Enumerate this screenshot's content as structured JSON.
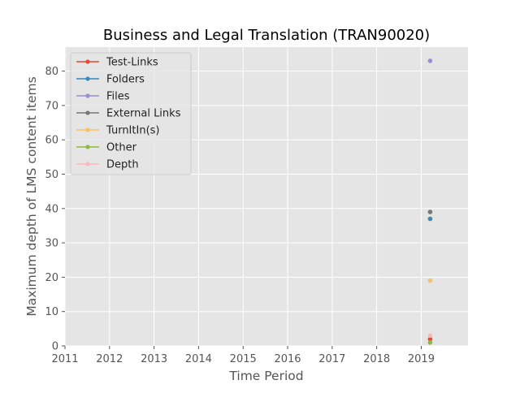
{
  "chart_data": {
    "type": "scatter",
    "title": "Business and Legal Translation (TRAN90020)",
    "xlabel": "Time Period",
    "ylabel": "Maximum depth of LMS content items",
    "xlim": [
      2011,
      2020.05
    ],
    "ylim": [
      0,
      87
    ],
    "x_ticks": [
      "2011",
      "2012",
      "2013",
      "2014",
      "2015",
      "2016",
      "2017",
      "2018",
      "2019"
    ],
    "y_ticks": [
      "0",
      "10",
      "20",
      "30",
      "40",
      "50",
      "60",
      "70",
      "80"
    ],
    "grid": true,
    "legend_position": "top-left",
    "series": [
      {
        "name": "Test-Links",
        "color": "#e24a33",
        "points": [
          {
            "x": 2019.2,
            "y": 2
          }
        ]
      },
      {
        "name": "Folders",
        "color": "#348abd",
        "points": [
          {
            "x": 2019.2,
            "y": 37
          }
        ]
      },
      {
        "name": "Files",
        "color": "#988ed5",
        "points": [
          {
            "x": 2019.2,
            "y": 83
          }
        ]
      },
      {
        "name": "External Links",
        "color": "#777777",
        "points": [
          {
            "x": 2019.2,
            "y": 39
          }
        ]
      },
      {
        "name": "TurnItIn(s)",
        "color": "#fbc15e",
        "points": [
          {
            "x": 2019.2,
            "y": 19
          }
        ]
      },
      {
        "name": "Other",
        "color": "#8eba42",
        "points": [
          {
            "x": 2019.2,
            "y": 1
          }
        ]
      },
      {
        "name": "Depth",
        "color": "#ffb5b8",
        "points": [
          {
            "x": 2019.2,
            "y": 3
          }
        ]
      }
    ]
  }
}
